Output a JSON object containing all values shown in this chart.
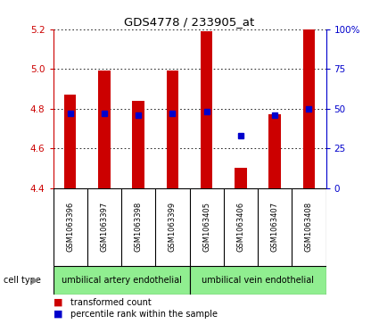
{
  "title": "GDS4778 / 233905_at",
  "samples": [
    "GSM1063396",
    "GSM1063397",
    "GSM1063398",
    "GSM1063399",
    "GSM1063405",
    "GSM1063406",
    "GSM1063407",
    "GSM1063408"
  ],
  "transformed_counts": [
    4.87,
    4.99,
    4.84,
    4.99,
    5.19,
    4.5,
    4.77,
    5.2
  ],
  "percentile_ranks": [
    47,
    47,
    46,
    47,
    48,
    33,
    46,
    50
  ],
  "ylim_left": [
    4.4,
    5.2
  ],
  "yticks_left": [
    4.4,
    4.6,
    4.8,
    5.0,
    5.2
  ],
  "ylim_right": [
    0,
    100
  ],
  "yticks_right": [
    0,
    25,
    50,
    75,
    100
  ],
  "yticklabels_right": [
    "0",
    "25",
    "50",
    "75",
    "100%"
  ],
  "bar_color": "#cc0000",
  "percentile_color": "#0000cc",
  "bar_width": 0.35,
  "group1_label": "umbilical artery endothelial",
  "group2_label": "umbilical vein endothelial",
  "group_bg_color": "#90ee90",
  "cell_type_label": "cell type",
  "legend_count_label": "transformed count",
  "legend_percentile_label": "percentile rank within the sample",
  "right_axis_color": "#0000cc",
  "grid_color": "black",
  "tick_label_color_left": "#cc0000",
  "tick_label_color_right": "#0000cc",
  "bg_color": "white",
  "plot_area_bg": "white",
  "sample_box_color": "#d3d3d3"
}
